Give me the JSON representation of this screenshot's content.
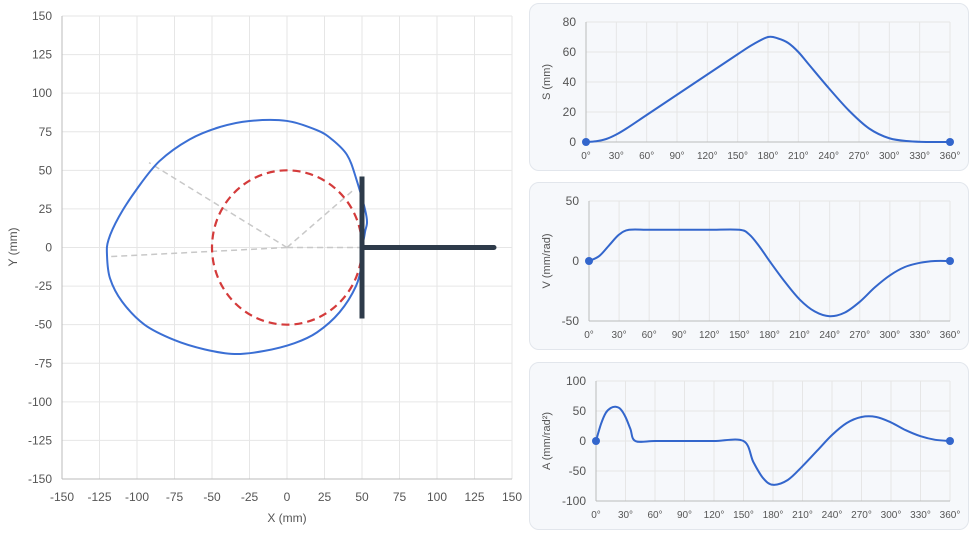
{
  "colors": {
    "profile": "#3b6fd4",
    "base_circle": "#d43b3b",
    "follower": "#2e3b4a",
    "construction": "#c8c8c8",
    "curve": "#3366cc",
    "grid": "#e6e6e6",
    "axis": "#bbbbbb"
  },
  "chart_data": [
    {
      "type": "line",
      "id": "cam-profile",
      "xlabel": "X (mm)",
      "ylabel": "Y (mm)",
      "xlim": [
        -150,
        150
      ],
      "ylim": [
        -150,
        150
      ],
      "xticks": [
        -150,
        -125,
        -100,
        -75,
        -50,
        -25,
        0,
        25,
        50,
        75,
        100,
        125,
        150
      ],
      "yticks": [
        -150,
        -125,
        -100,
        -75,
        -50,
        -25,
        0,
        25,
        50,
        75,
        100,
        125,
        150
      ],
      "grid": true,
      "cam_profile": [
        [
          50,
          0
        ],
        [
          52,
          10
        ],
        [
          53,
          20
        ],
        [
          46,
          45
        ],
        [
          40,
          60
        ],
        [
          30,
          70
        ],
        [
          20,
          76
        ],
        [
          0,
          82
        ],
        [
          -25,
          82
        ],
        [
          -45,
          78
        ],
        [
          -65,
          70
        ],
        [
          -85,
          56
        ],
        [
          -100,
          38
        ],
        [
          -112,
          20
        ],
        [
          -119,
          5
        ],
        [
          -120,
          -5
        ],
        [
          -118,
          -20
        ],
        [
          -110,
          -35
        ],
        [
          -95,
          -50
        ],
        [
          -75,
          -60
        ],
        [
          -55,
          -66
        ],
        [
          -35,
          -69
        ],
        [
          -15,
          -67
        ],
        [
          5,
          -62
        ],
        [
          20,
          -55
        ],
        [
          35,
          -42
        ],
        [
          46,
          -25
        ],
        [
          50,
          -10
        ],
        [
          50,
          0
        ]
      ],
      "base_circle_radius": 50,
      "follower_contact": [
        50,
        0
      ],
      "follower_face": [
        [
          50,
          -46
        ],
        [
          50,
          46
        ]
      ],
      "follower_stem": [
        [
          50,
          0
        ],
        [
          138,
          0
        ]
      ],
      "construction_lines": [
        [
          [
            0,
            0
          ],
          [
            -92,
            55
          ]
        ],
        [
          [
            0,
            0
          ],
          [
            44,
            37
          ]
        ],
        [
          [
            0,
            0
          ],
          [
            -120,
            -6
          ]
        ],
        [
          [
            0,
            0
          ],
          [
            50,
            0
          ]
        ]
      ]
    },
    {
      "type": "line",
      "id": "displacement",
      "ylabel": "S (mm)",
      "xlim": [
        0,
        360
      ],
      "ylim": [
        0,
        80
      ],
      "xticks": [
        "0°",
        "30°",
        "60°",
        "90°",
        "120°",
        "150°",
        "180°",
        "210°",
        "240°",
        "270°",
        "300°",
        "330°",
        "360°"
      ],
      "yticks": [
        0,
        20,
        40,
        60,
        80
      ],
      "x": [
        0,
        10,
        20,
        30,
        40,
        60,
        90,
        120,
        150,
        165,
        180,
        190,
        200,
        210,
        220,
        240,
        260,
        280,
        300,
        320,
        340,
        360
      ],
      "values": [
        0,
        0.5,
        2,
        5,
        9,
        18,
        31.5,
        45,
        58.5,
        65,
        70,
        69,
        66,
        60,
        52,
        36,
        21,
        9,
        2.5,
        0.5,
        0,
        0
      ]
    },
    {
      "type": "line",
      "id": "velocity",
      "ylabel": "V (mm/rad)",
      "xlim": [
        0,
        360
      ],
      "ylim": [
        -50,
        50
      ],
      "xticks": [
        "0°",
        "30°",
        "60°",
        "90°",
        "120°",
        "150°",
        "180°",
        "210°",
        "240°",
        "270°",
        "300°",
        "330°",
        "360°"
      ],
      "yticks": [
        -50,
        0,
        50
      ],
      "x": [
        0,
        10,
        20,
        30,
        40,
        60,
        90,
        120,
        150,
        160,
        170,
        180,
        195,
        210,
        225,
        240,
        255,
        270,
        285,
        300,
        315,
        330,
        345,
        360
      ],
      "values": [
        0,
        4,
        13,
        22,
        26,
        26,
        26,
        26,
        26,
        22,
        12,
        0,
        -17,
        -32,
        -42,
        -46,
        -43,
        -34,
        -22,
        -12,
        -5,
        -1.5,
        0,
        0
      ]
    },
    {
      "type": "line",
      "id": "acceleration",
      "ylabel": "A (mm/rad²)",
      "xlim": [
        0,
        360
      ],
      "ylim": [
        -100,
        100
      ],
      "xticks": [
        "0°",
        "30°",
        "60°",
        "90°",
        "120°",
        "150°",
        "180°",
        "210°",
        "240°",
        "270°",
        "300°",
        "330°",
        "360°"
      ],
      "yticks": [
        -100,
        -50,
        0,
        50,
        100
      ],
      "x": [
        0,
        5,
        10,
        15,
        20,
        25,
        30,
        35,
        40,
        60,
        90,
        120,
        150,
        160,
        170,
        180,
        195,
        210,
        225,
        240,
        255,
        270,
        285,
        300,
        315,
        330,
        345,
        360
      ],
      "values": [
        0,
        28,
        47,
        55,
        57,
        53,
        40,
        20,
        0,
        0,
        0,
        0,
        0,
        -35,
        -62,
        -73,
        -65,
        -42,
        -16,
        10,
        30,
        40,
        40,
        31,
        18,
        8,
        2,
        0
      ]
    }
  ]
}
